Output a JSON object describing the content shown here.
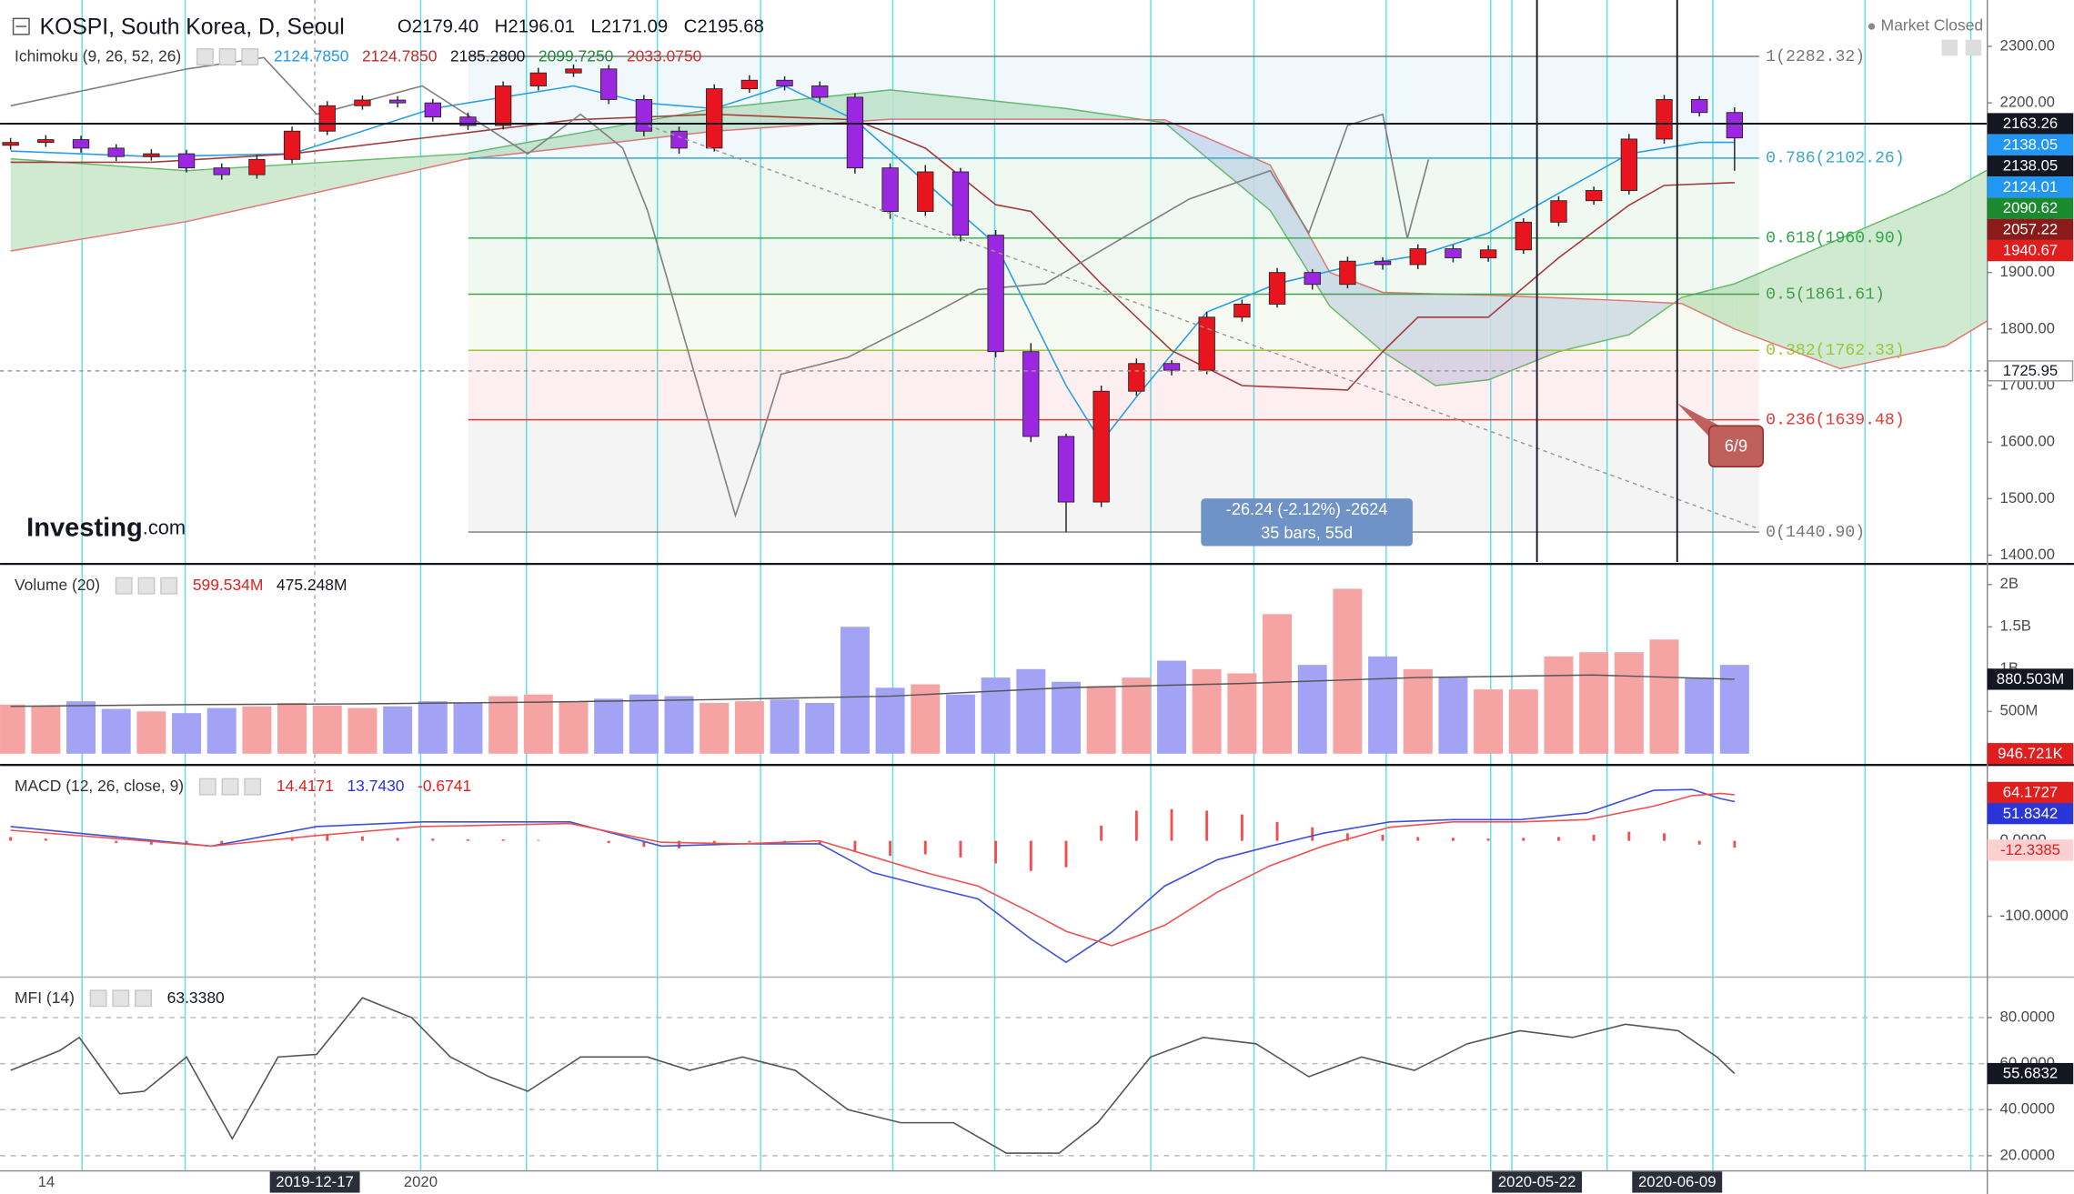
{
  "header": {
    "symbol": "KOSPI, South Korea, D, Seoul",
    "ohlc": [
      "O2179.40",
      "H2196.01",
      "L2171.09",
      "C2195.68"
    ],
    "market_status": "Market Closed"
  },
  "branding": [
    "Investing",
    ".com"
  ],
  "annotations": {
    "measure": [
      "-26.24 (-2.12%) -2624",
      "35 bars, 55d"
    ],
    "date_marker": "6/9"
  },
  "x_axis": {
    "labels": [
      "14",
      "2019-12-17",
      "2020",
      "2020-05-22",
      "2020-06-09"
    ]
  },
  "chart_data": [
    {
      "type": "candlestick",
      "legend": {
        "title": "Ichimoku (9, 26, 52, 26)",
        "readouts": [
          {
            "text": "2124.7850",
            "color": "#2196f3"
          },
          {
            "text": "2124.7850",
            "color": "#c62828"
          },
          {
            "text": "2185.2800",
            "color": "#131722"
          },
          {
            "text": "2099.7250",
            "color": "#1e8a3a"
          },
          {
            "text": "2033.0750",
            "color": "#d32f2f"
          }
        ]
      },
      "up_color": "#e8141e",
      "down_color": "#9c27e0",
      "open": [
        2125,
        2130,
        2135,
        2120,
        2105,
        2110,
        2085,
        2073,
        2100,
        2150,
        2195,
        2205,
        2200,
        2175,
        2160,
        2230,
        2253,
        2260,
        2206,
        2150,
        2120,
        2225,
        2240,
        2230,
        2210,
        2085,
        2008,
        2078,
        1966,
        1760,
        1610,
        1494,
        1690,
        1739,
        1727,
        1821,
        1844,
        1900,
        1879,
        1920,
        1914,
        1942,
        1926,
        1940,
        1989,
        2027,
        2045,
        2136,
        2206,
        2183
      ],
      "high": [
        2138,
        2143,
        2142,
        2127,
        2118,
        2117,
        2093,
        2108,
        2158,
        2203,
        2213,
        2212,
        2207,
        2183,
        2238,
        2262,
        2268,
        2267,
        2214,
        2158,
        2233,
        2249,
        2247,
        2238,
        2217,
        2093,
        2090,
        2085,
        1975,
        1775,
        1615,
        1700,
        1748,
        1745,
        1830,
        1852,
        1908,
        1906,
        1928,
        1927,
        1950,
        1949,
        1948,
        1996,
        2035,
        2052,
        2145,
        2214,
        2212,
        2192
      ],
      "low": [
        2117,
        2122,
        2112,
        2097,
        2098,
        2077,
        2064,
        2066,
        2093,
        2143,
        2188,
        2192,
        2167,
        2152,
        2153,
        2222,
        2246,
        2198,
        2141,
        2110,
        2114,
        2218,
        2222,
        2202,
        2075,
        1995,
        2000,
        1955,
        1750,
        1600,
        1440.9,
        1485,
        1682,
        1718,
        1720,
        1813,
        1838,
        1870,
        1872,
        1905,
        1906,
        1918,
        1919,
        1933,
        1982,
        2020,
        2038,
        2128,
        2176,
        2080
      ],
      "close": [
        2130,
        2135,
        2120,
        2105,
        2110,
        2085,
        2073,
        2100,
        2150,
        2195,
        2205,
        2200,
        2175,
        2160,
        2230,
        2253,
        2260,
        2206,
        2150,
        2120,
        2225,
        2240,
        2230,
        2210,
        2085,
        2008,
        2078,
        1966,
        1760,
        1610,
        1494,
        1690,
        1739,
        1727,
        1821,
        1844,
        1900,
        1879,
        1920,
        1914,
        1942,
        1926,
        1940,
        1989,
        2027,
        2045,
        2136,
        2206,
        2183,
        2138.05
      ],
      "lines": [
        {
          "color": "#29a0e0",
          "x": [
            0,
            4,
            8,
            12,
            16,
            18,
            20,
            22,
            24,
            26,
            28,
            30,
            31,
            32,
            34,
            36,
            38,
            40,
            42,
            44,
            46,
            48,
            49
          ],
          "values": [
            2115,
            2105,
            2110,
            2190,
            2230,
            2200,
            2190,
            2230,
            2170,
            2060,
            1950,
            1700,
            1600,
            1680,
            1830,
            1880,
            1910,
            1930,
            1970,
            2040,
            2110,
            2130,
            2130
          ]
        },
        {
          "color": "#a33b3b",
          "x": [
            0,
            4,
            8,
            12,
            16,
            20,
            24,
            26,
            28,
            29,
            31,
            33,
            35,
            38,
            39,
            40,
            42,
            44,
            46,
            47,
            49
          ],
          "values": [
            2095,
            2095,
            2110,
            2140,
            2170,
            2180,
            2170,
            2120,
            2020,
            2008,
            1880,
            1762,
            1700,
            1692,
            1760,
            1821,
            1821,
            1926,
            2019,
            2054,
            2059
          ]
        },
        {
          "color": "#7f7f7f",
          "x": [
            0,
            5,
            7.2,
            8.7,
            11.7,
            14.7,
            16.2,
            17.4,
            18.1,
            20.6,
            21.3,
            21.9,
            23.8,
            26,
            27.5,
            29.4,
            31.3,
            33.5,
            35.8,
            36.9,
            38,
            39,
            39.7,
            40.3
          ],
          "values": [
            2195,
            2260,
            2280,
            2180,
            2230,
            2110,
            2180,
            2120,
            2010,
            1470,
            1600,
            1720,
            1750,
            1820,
            1870,
            1880,
            1950,
            2030,
            2080,
            1970,
            2160,
            2180,
            1960,
            2100
          ]
        }
      ],
      "cloud": {
        "bull_color": "#c8e6c9",
        "bear_color": "#d3dcf2",
        "span_a_color": "#66bb6a",
        "span_b_color": "#e57373",
        "x": [
          0,
          5,
          12.9,
          20,
          25,
          30,
          32.8,
          35.8,
          37.5,
          39,
          40.5,
          42,
          44,
          46,
          47.5,
          49,
          52,
          55,
          56.2
        ],
        "span_a": [
          2101,
          2080,
          2110,
          2190,
          2223,
          2190,
          2165,
          2010,
          1840,
          1760,
          1700,
          1710,
          1760,
          1790,
          1856,
          1880,
          1960,
          2040,
          2082
        ],
        "span_b": [
          1938,
          1990,
          2100,
          2150,
          2171,
          2171,
          2170,
          2090,
          1900,
          1865,
          1862,
          1860,
          1855,
          1850,
          1845,
          1800,
          1730,
          1770,
          1815
        ]
      },
      "fib": [
        {
          "value": 2282.32,
          "label": "1(2282.32)",
          "color": "#787878"
        },
        {
          "value": 2102.26,
          "label": "0.786(2102.26)",
          "color": "#3aa6c8"
        },
        {
          "value": 1960.9,
          "label": "0.618(1960.90)",
          "color": "#2ea84a"
        },
        {
          "value": 1861.61,
          "label": "0.5(1861.61)",
          "color": "#43a047"
        },
        {
          "value": 1762.33,
          "label": "0.382(1762.33)",
          "color": "#9bc53d"
        },
        {
          "value": 1639.48,
          "label": "0.236(1639.48)",
          "color": "#e53935"
        },
        {
          "value": 1440.9,
          "label": "0(1440.90)",
          "color": "#787878"
        }
      ],
      "ylim": [
        1388,
        2382
      ],
      "yticks": [
        {
          "value": 1400,
          "label": "1400.00"
        },
        {
          "value": 1500,
          "label": "1500.00"
        },
        {
          "value": 1600,
          "label": "1600.00"
        },
        {
          "value": 1700,
          "label": "1700.00"
        },
        {
          "value": 1800,
          "label": "1800.00"
        },
        {
          "value": 1900,
          "label": "1900.00"
        },
        {
          "value": 2000,
          "label": "2000.00"
        },
        {
          "value": 2100,
          "label": "2100.00"
        },
        {
          "value": 2200,
          "label": "2200.00"
        },
        {
          "value": 2300,
          "label": "2300.00"
        }
      ],
      "tags": [
        {
          "value": 2163.26,
          "color": "#131722",
          "text_color": "#ffffff",
          "line": "solid"
        },
        {
          "value": 2138.05,
          "color": "#2196f3",
          "text_color": "#ffffff"
        },
        {
          "value": 2138.05,
          "color": "#131722",
          "text_color": "#ffffff"
        },
        {
          "value": 2124.01,
          "color": "#2196f3",
          "text_color": "#ffffff"
        },
        {
          "value": 2090.62,
          "color": "#1b8a2e",
          "text_color": "#ffffff"
        },
        {
          "value": 2057.22,
          "color": "#8b1a1a",
          "text_color": "#ffffff"
        },
        {
          "value": 1940.67,
          "color": "#e01e1e",
          "text_color": "#ffffff"
        },
        {
          "value": 1725.95,
          "color": "#ffffff",
          "text_color": "#131722",
          "line": "dashed"
        }
      ]
    },
    {
      "type": "bar",
      "legend": {
        "title": "Volume (20)",
        "readouts": [
          {
            "text": "599.534M",
            "color": "#e01e1e"
          },
          {
            "text": "475.248M",
            "color": "#131722"
          }
        ]
      },
      "up_color": "#f5a3a3",
      "down_color": "#a3a3f5",
      "values": [
        580,
        560,
        620,
        530,
        500,
        480,
        540,
        560,
        600,
        570,
        540,
        560,
        620,
        600,
        680,
        700,
        620,
        650,
        700,
        680,
        600,
        620,
        640,
        600,
        1500,
        780,
        820,
        700,
        900,
        1000,
        850,
        800,
        900,
        1100,
        1000,
        950,
        1650,
        1050,
        1950,
        1150,
        1000,
        900,
        760,
        760,
        1150,
        1200,
        1200,
        1350,
        900,
        1050
      ],
      "ma": {
        "color": "#555555",
        "x": [
          0,
          5,
          10,
          15,
          20,
          25,
          30,
          35,
          40,
          45,
          49
        ],
        "values": [
          560,
          580,
          590,
          610,
          640,
          680,
          780,
          830,
          900,
          930,
          880
        ]
      },
      "ylim": [
        -125,
        2220
      ],
      "yticks": [
        {
          "value": 500,
          "label": "500M"
        },
        {
          "value": 1000,
          "label": "1B"
        },
        {
          "value": 1500,
          "label": "1.5B"
        },
        {
          "value": 2000,
          "label": "2B"
        }
      ],
      "tags": [
        {
          "value": 880.503,
          "label": "880.503M",
          "color": "#131722",
          "text_color": "#ffffff"
        },
        {
          "value": 0.946721,
          "label": "946.721K",
          "color": "#e01e1e",
          "text_color": "#ffffff"
        }
      ]
    },
    {
      "type": "line",
      "legend": {
        "title": "MACD (12, 26, close, 9)",
        "readouts": [
          {
            "text": "14.4171",
            "color": "#e01e1e"
          },
          {
            "text": "13.7430",
            "color": "#2a35d8"
          },
          {
            "text": "-0.6741",
            "color": "#e01e1e"
          }
        ]
      },
      "series": [
        {
          "color": "#3f51d8",
          "x": [
            0,
            5.7,
            8.7,
            11.7,
            15.9,
            18.5,
            20.8,
            23,
            24.5,
            26,
            27.5,
            29,
            30,
            31.3,
            32.8,
            34.3,
            35.8,
            37.3,
            39.2,
            41,
            42.9,
            44.8,
            46.7,
            47.8,
            48.6,
            49
          ],
          "values": [
            19,
            -7,
            19,
            25,
            25,
            -7,
            -4,
            -4,
            -42,
            -60,
            -77,
            -130,
            -161,
            -121,
            -60,
            -25,
            -7,
            10,
            25,
            28,
            28,
            37,
            67,
            68,
            56,
            52
          ]
        },
        {
          "color": "#f05050",
          "x": [
            0,
            5.7,
            8.7,
            11.7,
            15.9,
            18.5,
            20.8,
            23,
            24.5,
            26,
            27.5,
            29,
            30,
            31.3,
            32.8,
            34.3,
            35.8,
            37.3,
            39.2,
            41,
            42.9,
            44.8,
            46.7,
            47.8,
            48.6,
            49
          ],
          "values": [
            14,
            -7,
            7,
            19,
            23,
            -2,
            -4,
            0,
            -21,
            -42,
            -60,
            -95,
            -120,
            -139,
            -112,
            -68,
            -33,
            -7,
            18,
            25,
            25,
            28,
            46,
            60,
            63,
            61
          ]
        }
      ],
      "histogram": {
        "color": "#f05050",
        "values": [
          5,
          3,
          0,
          -3,
          -5,
          -5,
          -4,
          -2,
          5,
          8,
          6,
          4,
          3,
          2,
          2,
          1,
          0,
          -3,
          -8,
          -10,
          -6,
          -2,
          -3,
          -5,
          -15,
          -20,
          -18,
          -22,
          -30,
          -40,
          -35,
          20,
          40,
          42,
          40,
          35,
          25,
          18,
          10,
          8,
          5,
          4,
          3,
          4,
          5,
          8,
          12,
          10,
          -5,
          -9
        ]
      },
      "ylim": [
        -179,
        98
      ],
      "yticks": [
        {
          "value": -100,
          "label": "-100.0000"
        },
        {
          "value": 0,
          "label": "0.0000"
        }
      ],
      "tags": [
        {
          "value": 64.1727,
          "color": "#e01e1e",
          "text_color": "#ffffff"
        },
        {
          "value": 51.8342,
          "color": "#2a35d8",
          "text_color": "#ffffff"
        },
        {
          "value": -12.3385,
          "color": "#fbd0d0",
          "text_color": "#e01e1e"
        }
      ]
    },
    {
      "type": "line",
      "legend": {
        "title": "MFI (14)",
        "readouts": [
          {
            "text": "63.3380",
            "color": "#131722"
          }
        ]
      },
      "grid": "dashed",
      "series": [
        {
          "color": "#555555",
          "x": [
            0,
            1.4,
            1.95,
            3.1,
            3.8,
            5,
            6.3,
            7.6,
            8.7,
            10,
            11.4,
            12.5,
            13.6,
            14.7,
            16.2,
            18.1,
            19.3,
            20.8,
            22.3,
            23.8,
            25.3,
            26.8,
            28.3,
            29.8,
            30.9,
            32.4,
            33.9,
            35.4,
            36.9,
            38.4,
            39.9,
            41.4,
            42.9,
            44.4,
            45.9,
            47.4,
            48.5,
            49
          ],
          "values": [
            57.1,
            65.7,
            71.4,
            46.9,
            48,
            62.9,
            27.4,
            62.9,
            64,
            88.6,
            80,
            62.9,
            54.3,
            48,
            62.9,
            62.9,
            57.1,
            62.9,
            57.1,
            40,
            34.3,
            34.3,
            21.1,
            21.1,
            34.3,
            62.9,
            71.4,
            68.6,
            54.3,
            62.9,
            57.1,
            68.6,
            74.3,
            71.4,
            77.1,
            74.3,
            62.9,
            55.68
          ]
        }
      ],
      "ylim": [
        13.7,
        97
      ],
      "yticks": [
        {
          "value": 20,
          "label": "20.0000"
        },
        {
          "value": 40,
          "label": "40.0000"
        },
        {
          "value": 60,
          "label": "60.0000"
        },
        {
          "value": 80,
          "label": "80.0000"
        }
      ],
      "tags": [
        {
          "value": 55.6832,
          "color": "#131722",
          "text_color": "#ffffff"
        }
      ]
    }
  ]
}
